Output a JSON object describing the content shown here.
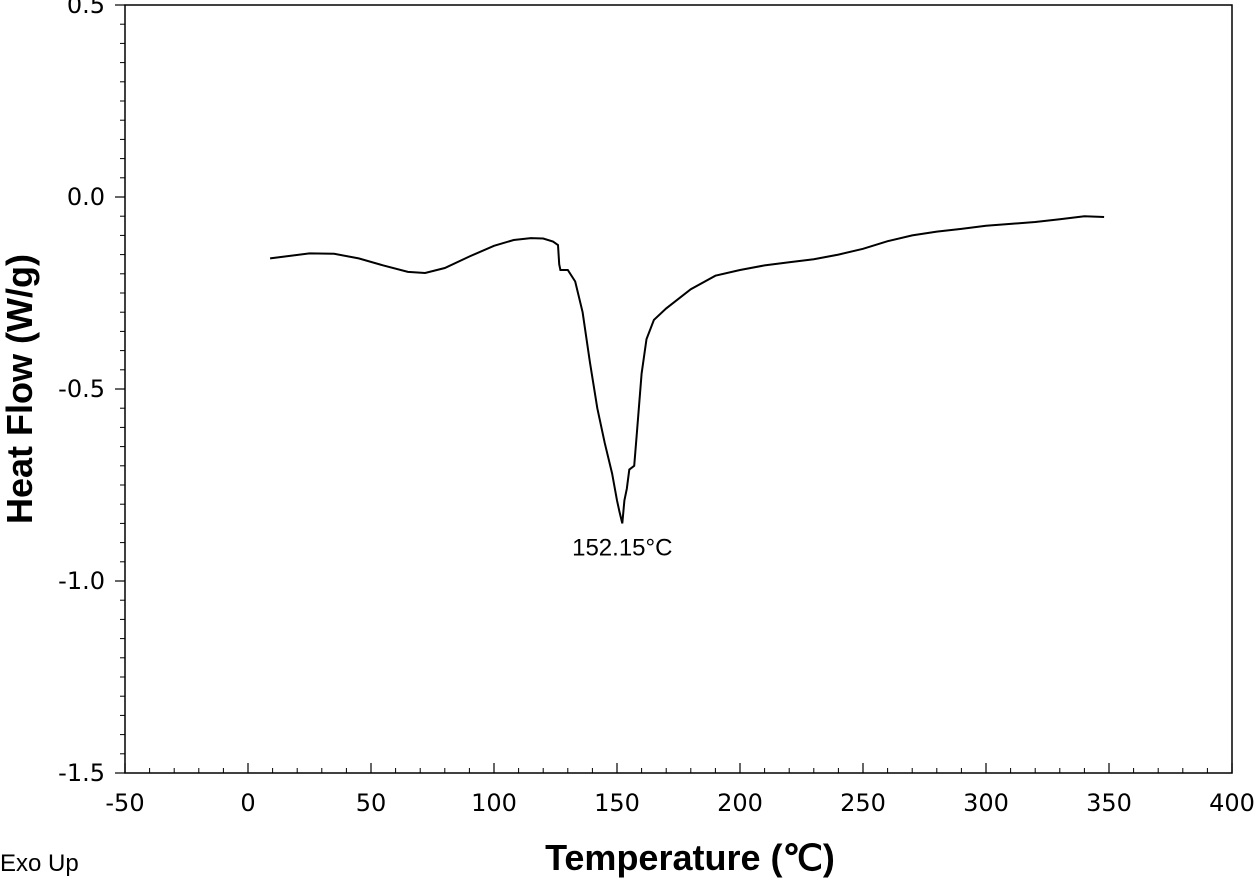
{
  "chart_data": {
    "type": "line",
    "xlabel": "Temperature (℃)",
    "ylabel": "Heat Flow (W/g)",
    "xlim": [
      -50,
      400
    ],
    "ylim": [
      -1.5,
      0.5
    ],
    "x_ticks": [
      -50,
      0,
      50,
      100,
      150,
      200,
      250,
      300,
      350,
      400
    ],
    "x_tick_labels": [
      "-50",
      "0",
      "50",
      "100",
      "150",
      "200",
      "250",
      "300",
      "350",
      "400"
    ],
    "y_ticks": [
      0.5,
      0.0,
      -0.5,
      -1.0,
      -1.5
    ],
    "y_tick_labels": [
      "0.5",
      "0.0",
      "-0.5",
      "-1.0",
      "-1.5"
    ],
    "grid": false,
    "legend": "none",
    "line_color": "#000000",
    "corner_note": "Exo Up",
    "annotations": [
      {
        "text": "152.15°C",
        "x": 152.15,
        "y": -0.85
      }
    ],
    "series": [
      {
        "points": [
          [
            9,
            -0.16
          ],
          [
            15,
            -0.155
          ],
          [
            25,
            -0.147
          ],
          [
            35,
            -0.148
          ],
          [
            45,
            -0.16
          ],
          [
            55,
            -0.178
          ],
          [
            65,
            -0.195
          ],
          [
            72,
            -0.198
          ],
          [
            80,
            -0.185
          ],
          [
            90,
            -0.155
          ],
          [
            100,
            -0.127
          ],
          [
            108,
            -0.112
          ],
          [
            115,
            -0.107
          ],
          [
            120,
            -0.108
          ],
          [
            124,
            -0.116
          ],
          [
            126,
            -0.125
          ],
          [
            126.5,
            -0.175
          ],
          [
            127,
            -0.19
          ],
          [
            130,
            -0.19
          ],
          [
            133,
            -0.22
          ],
          [
            136,
            -0.3
          ],
          [
            139,
            -0.43
          ],
          [
            142,
            -0.55
          ],
          [
            145,
            -0.64
          ],
          [
            148,
            -0.72
          ],
          [
            150,
            -0.79
          ],
          [
            151,
            -0.82
          ],
          [
            152.15,
            -0.85
          ],
          [
            153,
            -0.79
          ],
          [
            154,
            -0.76
          ],
          [
            155,
            -0.71
          ],
          [
            157,
            -0.7
          ],
          [
            158,
            -0.62
          ],
          [
            160,
            -0.46
          ],
          [
            162,
            -0.37
          ],
          [
            165,
            -0.32
          ],
          [
            170,
            -0.29
          ],
          [
            180,
            -0.24
          ],
          [
            190,
            -0.205
          ],
          [
            200,
            -0.19
          ],
          [
            210,
            -0.178
          ],
          [
            220,
            -0.17
          ],
          [
            230,
            -0.162
          ],
          [
            240,
            -0.15
          ],
          [
            250,
            -0.135
          ],
          [
            260,
            -0.115
          ],
          [
            270,
            -0.1
          ],
          [
            280,
            -0.09
          ],
          [
            290,
            -0.083
          ],
          [
            300,
            -0.075
          ],
          [
            310,
            -0.07
          ],
          [
            320,
            -0.065
          ],
          [
            330,
            -0.058
          ],
          [
            340,
            -0.05
          ],
          [
            348,
            -0.052
          ]
        ]
      }
    ]
  }
}
